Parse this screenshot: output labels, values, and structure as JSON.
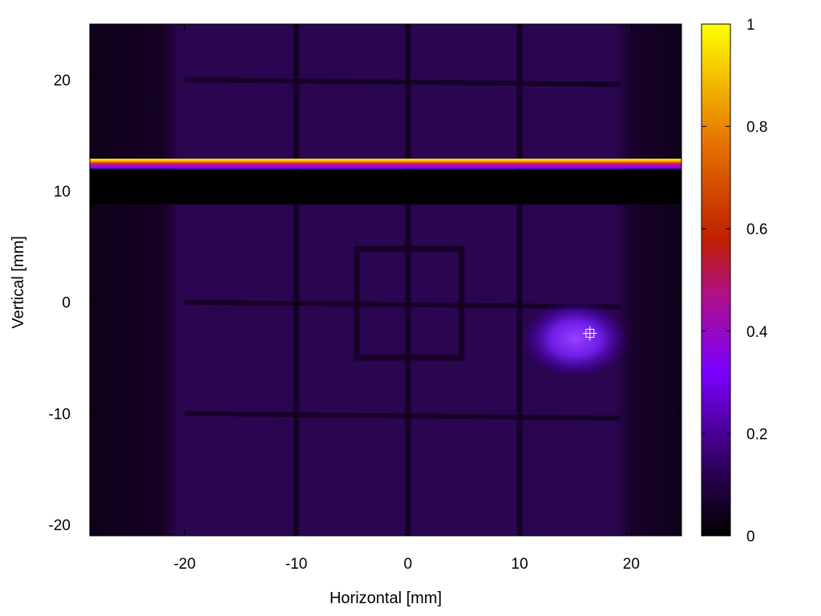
{
  "chart_data": {
    "type": "heatmap",
    "title": "",
    "xlabel": "Horizontal [mm]",
    "ylabel": "Vertical [mm]",
    "xlim": [
      -28.5,
      24.5
    ],
    "ylim": [
      -21,
      25
    ],
    "x_ticks": [
      -20,
      -10,
      0,
      10,
      20
    ],
    "y_ticks": [
      -20,
      -10,
      0,
      10,
      20
    ],
    "grid": false,
    "colorbar": {
      "range": [
        0,
        1
      ],
      "ticks": [
        0,
        0.2,
        0.4,
        0.6,
        0.8,
        1
      ],
      "colormap": [
        "#000000",
        "#2a0050",
        "#7a00ff",
        "#c02000",
        "#e87800",
        "#ffff00"
      ],
      "placement": "right"
    },
    "background_value": 0.07,
    "features": {
      "bright_stripe": {
        "y_range": [
          12.0,
          12.9
        ],
        "peak": 1.0
      },
      "dark_band": {
        "y_range": [
          8.8,
          11.9
        ],
        "value": 0.0
      },
      "vertical_grid_lines_x": [
        -10,
        0,
        10
      ],
      "horizontal_grid_lines_y": [
        20,
        0,
        -10
      ],
      "inner_square": {
        "x_range": [
          -4.6,
          4.8
        ],
        "y_range": [
          -5.0,
          4.8
        ]
      },
      "hot_spot": {
        "x": 15.0,
        "y": -3.3,
        "peak": 0.3
      },
      "marker": {
        "x": 16.3,
        "y": -2.8,
        "symbol": "crosshair"
      },
      "dark_left_edge_x": [
        -28.5,
        -20.5
      ],
      "dark_right_edge_x": [
        18.5,
        24.5
      ]
    }
  }
}
